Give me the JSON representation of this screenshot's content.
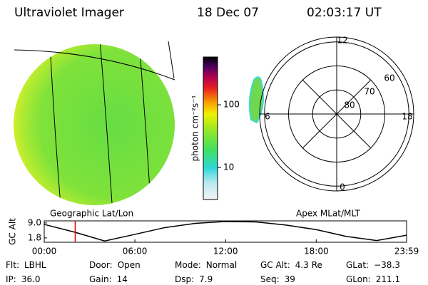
{
  "header": {
    "instrument": "Ultraviolet Imager",
    "date": "18 Dec 07",
    "time": "02:03:17 UT"
  },
  "geo_panel": {
    "label": "Geographic Lat/Lon"
  },
  "colorbar": {
    "label": "photon cm⁻²s⁻¹",
    "scale": "log",
    "lim": [
      3.1,
      577
    ],
    "ticks": [
      10,
      100
    ]
  },
  "polar_panel": {
    "label": "Apex MLat/MLT",
    "rlim": [
      90,
      58
    ],
    "rings": [
      80,
      70,
      60
    ],
    "mlt_ticks": [
      12,
      6,
      18,
      0
    ]
  },
  "chart_data": {
    "type": "line",
    "ylabel": "GC Alt",
    "x": [
      0,
      2,
      4,
      6,
      8,
      10,
      12,
      14,
      16,
      18,
      20,
      22,
      23.98
    ],
    "series": [
      {
        "color": "#000000",
        "values": [
          8.3,
          4.6,
          0.3,
          3.5,
          6.8,
          8.8,
          9.7,
          9.5,
          8.0,
          5.8,
          2.5,
          0.5,
          3.1
        ]
      }
    ],
    "xlim": [
      0,
      23.98
    ],
    "xticks": [
      {
        "value": 0,
        "label": "00:00"
      },
      {
        "value": 6,
        "label": "06:00"
      },
      {
        "value": 12,
        "label": "12:00"
      },
      {
        "value": 18,
        "label": "18:00"
      },
      {
        "value": 23.98,
        "label": "23:59"
      }
    ],
    "ylim": [
      -0.3,
      10.0
    ],
    "yticks": [
      {
        "value": 9.0,
        "label": "9.0"
      },
      {
        "value": 1.8,
        "label": "1.8"
      }
    ],
    "marker_x": 2.05,
    "marker_color": "#e00000"
  },
  "status": {
    "rows": [
      [
        {
          "label": "Flt:",
          "value": "LBHL"
        },
        {
          "label": "Door:",
          "value": "Open"
        },
        {
          "label": "Mode:",
          "value": "Normal"
        },
        {
          "label": "GC Alt:",
          "value": "4.3 Re"
        },
        {
          "label": "GLat:",
          "value": "−38.3"
        }
      ],
      [
        {
          "label": "IP:",
          "value": "36.0"
        },
        {
          "label": "Gain:",
          "value": "14"
        },
        {
          "label": "Dsp:",
          "value": "7.9"
        },
        {
          "label": "Seq:",
          "value": "39"
        },
        {
          "label": "GLon:",
          "value": "211.1"
        }
      ]
    ]
  }
}
